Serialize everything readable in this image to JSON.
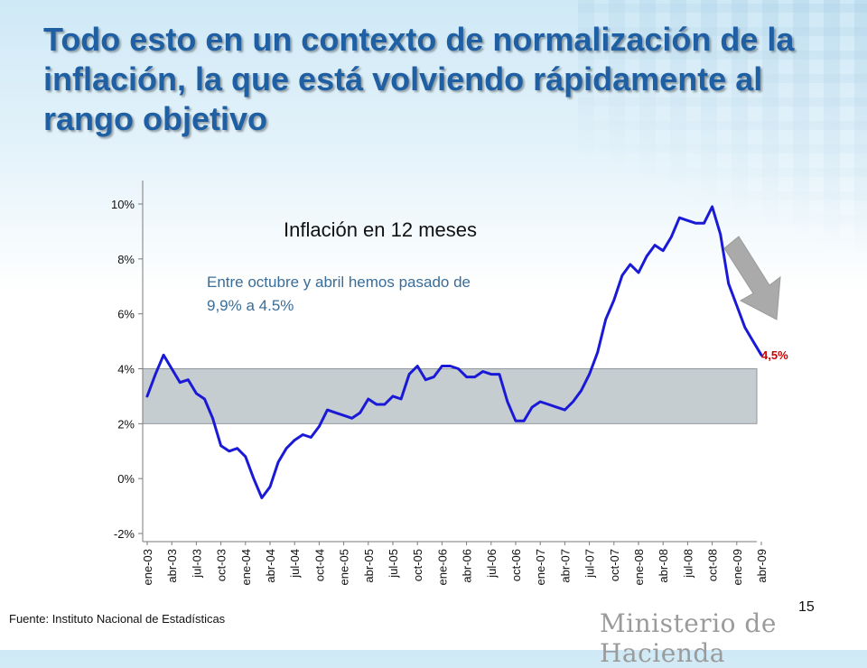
{
  "slide": {
    "title": "Todo esto en un contexto de normalización de la inflación, la que está volviendo rápidamente al rango objetivo",
    "source": "Fuente: Instituto Nacional de Estadísticas",
    "page_number": "15",
    "ministry": "Ministerio de Hacienda"
  },
  "chart_data": {
    "type": "line",
    "title": "Inflación en 12 meses",
    "annotation": "Entre octubre y abril hemos pasado de 9,9% a 4.5%",
    "end_label": "4,5%",
    "ylim": [
      -2,
      10
    ],
    "yticks": [
      {
        "v": 10,
        "label": "10%"
      },
      {
        "v": 8,
        "label": "8%"
      },
      {
        "v": 6,
        "label": "6%"
      },
      {
        "v": 4,
        "label": "4%"
      },
      {
        "v": 2,
        "label": "2%"
      },
      {
        "v": 0,
        "label": "0%"
      },
      {
        "v": -2,
        "label": "-2%"
      }
    ],
    "target_range": [
      2,
      4
    ],
    "xticks": [
      "ene-03",
      "abr-03",
      "jul-03",
      "oct-03",
      "ene-04",
      "abr-04",
      "jul-04",
      "oct-04",
      "ene-05",
      "abr-05",
      "jul-05",
      "oct-05",
      "ene-06",
      "abr-06",
      "jul-06",
      "oct-06",
      "ene-07",
      "abr-07",
      "jul-07",
      "oct-07",
      "ene-08",
      "abr-08",
      "jul-08",
      "oct-08",
      "ene-09",
      "abr-09"
    ],
    "series": [
      {
        "color": "#1a1ad6",
        "values": [
          3.0,
          3.8,
          4.5,
          4.0,
          3.5,
          3.6,
          3.1,
          2.9,
          2.2,
          1.2,
          1.0,
          1.1,
          0.8,
          0.0,
          -0.7,
          -0.3,
          0.6,
          1.1,
          1.4,
          1.6,
          1.5,
          1.9,
          2.5,
          2.4,
          2.3,
          2.2,
          2.4,
          2.9,
          2.7,
          2.7,
          3.0,
          2.9,
          3.8,
          4.1,
          3.6,
          3.7,
          4.1,
          4.1,
          4.0,
          3.7,
          3.7,
          3.9,
          3.8,
          3.8,
          2.8,
          2.1,
          2.1,
          2.6,
          2.8,
          2.7,
          2.6,
          2.5,
          2.8,
          3.2,
          3.8,
          4.6,
          5.8,
          6.5,
          7.4,
          7.8,
          7.5,
          8.1,
          8.5,
          8.3,
          8.8,
          9.5,
          9.4,
          9.3,
          9.3,
          9.9,
          8.9,
          7.1,
          6.3,
          5.5,
          5.0,
          4.5
        ]
      }
    ],
    "grid": false,
    "legend": "none"
  }
}
